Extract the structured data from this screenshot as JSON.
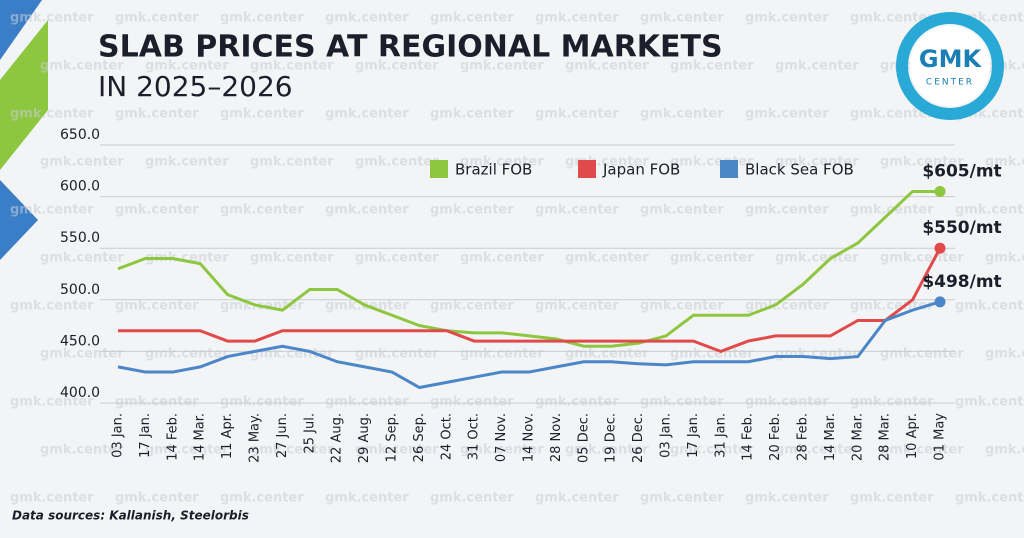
{
  "chart_data": {
    "type": "line",
    "title": "SLAB PRICES AT REGIONAL MARKETS",
    "subtitle": "IN 2025–2026",
    "source": "Data sources: Kallanish, Steelorbis",
    "watermark": "gmk.center",
    "logo": {
      "main": "GMK",
      "sub": "CENTER"
    },
    "categories": [
      "03 Jan.",
      "17 Jan.",
      "14 Feb.",
      "14 Mar.",
      "11 Apr.",
      "23 May.",
      "27 Jun.",
      "25 Jul.",
      "22 Aug.",
      "29 Aug.",
      "12 Sep.",
      "26 Sep.",
      "24 Oct.",
      "31 Oct.",
      "07 Nov.",
      "14 Nov.",
      "28 Nov.",
      "05 Dec.",
      "19 Dec.",
      "26 Dec.",
      "03 Jan.",
      "17 Jan.",
      "31 Jan.",
      "14 Feb.",
      "20 Feb.",
      "28 Feb.",
      "14 Mar.",
      "20 Mar.",
      "28 Mar.",
      "10 Apr.",
      "01 May"
    ],
    "series": [
      {
        "name": "Brazil FOB",
        "color": "#8dc63f",
        "end_label": "$605/mt",
        "values": [
          530,
          540,
          540,
          535,
          505,
          495,
          490,
          510,
          510,
          495,
          485,
          475,
          470,
          468,
          468,
          465,
          462,
          455,
          455,
          458,
          465,
          485,
          485,
          485,
          495,
          515,
          540,
          555,
          580,
          605,
          605
        ]
      },
      {
        "name": "Japan FOB",
        "color": "#e04a4a",
        "end_label": "$550/mt",
        "values": [
          470,
          470,
          470,
          470,
          460,
          460,
          470,
          470,
          470,
          470,
          470,
          470,
          470,
          460,
          460,
          460,
          460,
          460,
          460,
          460,
          460,
          460,
          450,
          460,
          465,
          465,
          465,
          480,
          480,
          500,
          550
        ]
      },
      {
        "name": "Black Sea FOB",
        "color": "#4a86c8",
        "end_label": "$498/mt",
        "values": [
          435,
          430,
          430,
          435,
          445,
          450,
          455,
          450,
          440,
          435,
          430,
          415,
          420,
          425,
          430,
          430,
          435,
          440,
          440,
          438,
          437,
          440,
          440,
          440,
          445,
          445,
          443,
          445,
          480,
          490,
          498
        ]
      }
    ],
    "ylim": [
      400,
      650
    ],
    "yticks": [
      {
        "value": 400,
        "label": "400.0"
      },
      {
        "value": 450,
        "label": "450.0"
      },
      {
        "value": 500,
        "label": "500.0"
      },
      {
        "value": 550,
        "label": "550.0"
      },
      {
        "value": 600,
        "label": "600.0"
      },
      {
        "value": 650,
        "label": "650.0"
      }
    ],
    "grid": true
  }
}
